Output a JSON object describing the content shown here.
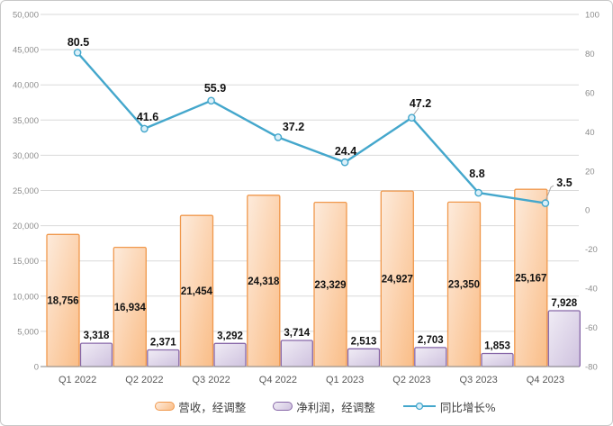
{
  "chart_data": {
    "type": "combo",
    "title": "",
    "categories": [
      "Q1 2022",
      "Q2 2022",
      "Q3 2022",
      "Q4 2022",
      "Q1 2023",
      "Q2 2023",
      "Q3 2023",
      "Q4 2023"
    ],
    "series": [
      {
        "name": "营收，经调整",
        "type": "bar",
        "axis": "left",
        "values": [
          18756,
          16934,
          21454,
          24318,
          23329,
          24927,
          23350,
          25167
        ],
        "data_labels": [
          "18,756",
          "16,934",
          "21,454",
          "24,318",
          "23,329",
          "24,927",
          "23,350",
          "25,167"
        ]
      },
      {
        "name": "净利润，经调整",
        "type": "bar",
        "axis": "left",
        "values": [
          3318,
          2371,
          3292,
          3714,
          2513,
          2703,
          1853,
          7928
        ],
        "data_labels": [
          "3,318",
          "2,371",
          "3,292",
          "3,714",
          "2,513",
          "2,703",
          "1,853",
          "7,928"
        ]
      },
      {
        "name": "同比增长%",
        "type": "line",
        "axis": "right",
        "values": [
          80.5,
          41.6,
          55.9,
          37.2,
          24.4,
          47.2,
          8.8,
          3.5
        ],
        "data_labels": [
          "80.5",
          "41.6",
          "55.9",
          "37.2",
          "24.4",
          "47.2",
          "8.8",
          "3.5"
        ]
      }
    ],
    "left_axis": {
      "min": 0,
      "max": 50000,
      "step": 5000,
      "tick_labels": [
        "0",
        "5,000",
        "10,000",
        "15,000",
        "20,000",
        "25,000",
        "30,000",
        "35,000",
        "40,000",
        "45,000",
        "50,000"
      ]
    },
    "right_axis": {
      "min": -80,
      "max": 100,
      "step": 20,
      "tick_labels": [
        "100",
        "80",
        "60",
        "40",
        "20",
        "0",
        "-20",
        "-40",
        "-60",
        "-80"
      ]
    },
    "grid": true,
    "legend_position": "bottom",
    "legend": [
      {
        "label": "营收，经调整",
        "swatch": "bar-orange"
      },
      {
        "label": "净利润，经调整",
        "swatch": "bar-purple"
      },
      {
        "label": "同比增长%",
        "swatch": "line-marker"
      }
    ],
    "colors": {
      "revenue_fill_light": "#FDEBDC",
      "revenue_fill_dark": "#FABD87",
      "revenue_border": "#F0984C",
      "profit_fill_light": "#F0ECF5",
      "profit_fill_dark": "#CFC2DF",
      "profit_border": "#8767A8",
      "line": "#44A7CC",
      "marker_fill": "#DCF0F9",
      "grid": "#D9D9D9",
      "axis_line": "#9E9E9E",
      "tick_text": "#8C8C8C",
      "category_text": "#595959",
      "data_label_text": "#111111",
      "leader_line": "#A6A6A6"
    }
  }
}
